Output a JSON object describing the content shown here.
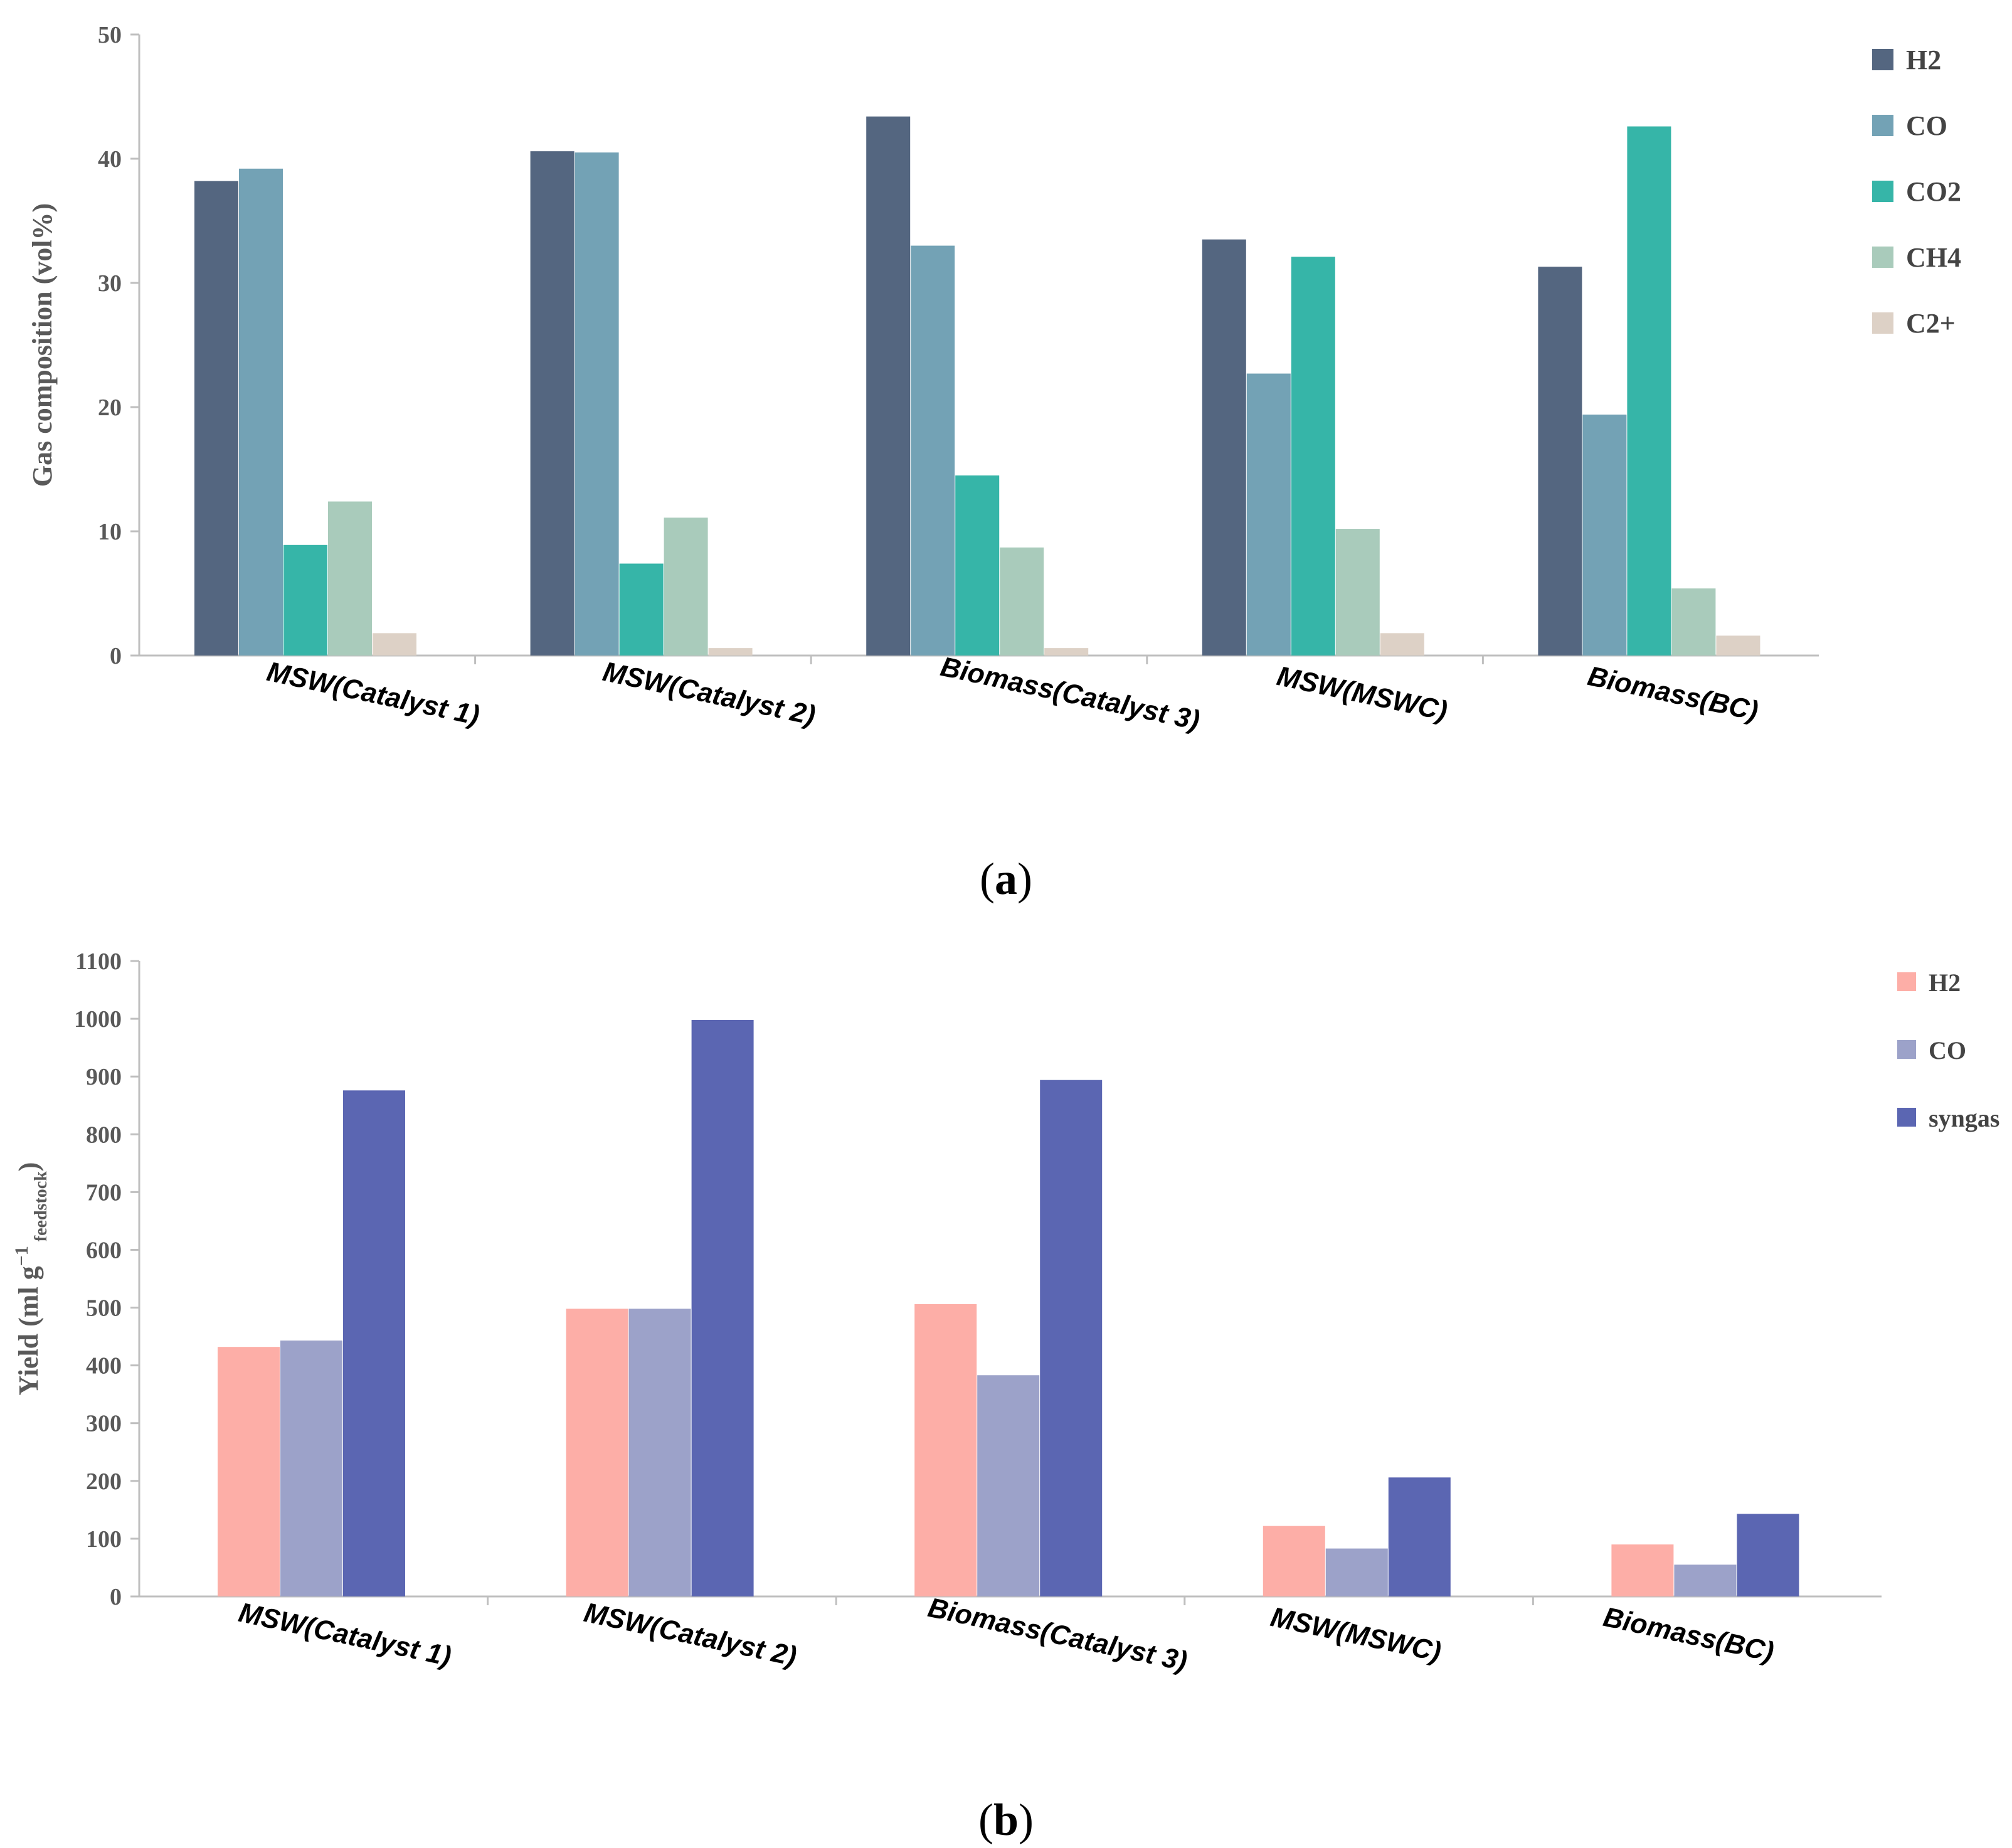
{
  "chart_data": [
    {
      "panel": "(a)",
      "panel_letter": "a",
      "type": "bar",
      "title": "",
      "xlabel": "",
      "ylabel": "Gas composition (vol%)",
      "ylim": [
        0,
        50
      ],
      "yticks": [
        "0",
        "10",
        "20",
        "30",
        "40",
        "50"
      ],
      "categories": [
        "MSW(Catalyst 1)",
        "MSW(Catalyst 2)",
        "Biomass(Catalyst 3)",
        "MSW(MSWC)",
        "Biomass(BC)"
      ],
      "series": [
        {
          "name": "H2",
          "color": "#546680",
          "values": [
            38.2,
            40.6,
            43.4,
            33.5,
            31.3
          ]
        },
        {
          "name": "CO",
          "color": "#73a2b5",
          "values": [
            39.2,
            40.5,
            33.0,
            22.7,
            19.4
          ]
        },
        {
          "name": "CO2",
          "color": "#36b5a8",
          "values": [
            8.9,
            7.4,
            14.5,
            32.1,
            42.6
          ]
        },
        {
          "name": "CH4",
          "color": "#a9cbbb",
          "values": [
            12.4,
            11.1,
            8.7,
            10.2,
            5.4
          ]
        },
        {
          "name": "C2+",
          "color": "#ddd1c6",
          "values": [
            1.8,
            0.6,
            0.6,
            1.8,
            1.6
          ]
        }
      ],
      "legend": "right"
    },
    {
      "panel": "(b)",
      "panel_letter": "b",
      "type": "bar",
      "title": "",
      "xlabel": "",
      "ylabel": "Yield (ml g",
      "ylabel_sup": "−1",
      "ylabel_sub": "feedstock",
      "ylabel_close": ")",
      "ylim": [
        0,
        1100
      ],
      "yticks": [
        "0",
        "100",
        "200",
        "300",
        "400",
        "500",
        "600",
        "700",
        "800",
        "900",
        "1000",
        "1100"
      ],
      "categories": [
        "MSW(Catalyst 1)",
        "MSW(Catalyst 2)",
        "Biomass(Catalyst 3)",
        "MSW(MSWC)",
        "Biomass(BC)"
      ],
      "series": [
        {
          "name": "H2",
          "color": "#fdaea7",
          "values": [
            432,
            498,
            506,
            122,
            90
          ]
        },
        {
          "name": "CO",
          "color": "#9ca2c9",
          "values": [
            443,
            498,
            383,
            83,
            55
          ]
        },
        {
          "name": "syngas",
          "color": "#5b66b2",
          "values": [
            876,
            998,
            894,
            206,
            143
          ]
        }
      ],
      "legend": "right"
    }
  ]
}
